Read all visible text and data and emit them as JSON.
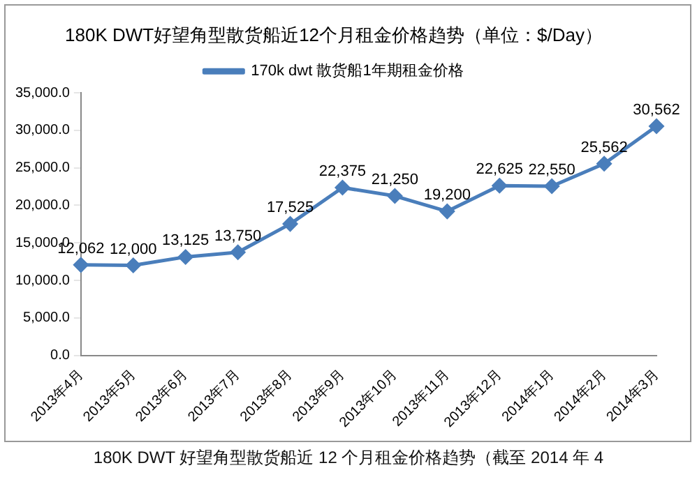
{
  "chart_data": {
    "type": "line",
    "title": "180K DWT好望角型散货船近12个月租金价格趋势（单位：$/Day）",
    "categories": [
      "2013年4月",
      "2013年5月",
      "2013年6月",
      "2013年7月",
      "2013年8月",
      "2013年9月",
      "2013年10月",
      "2013年11月",
      "2013年12月",
      "2014年1月",
      "2014年2月",
      "2014年3月"
    ],
    "series": [
      {
        "name": "170k dwt 散货船1年期租金价格",
        "color": "#4a7ebb",
        "values": [
          12062,
          12000,
          13125,
          13750,
          17525,
          22375,
          21250,
          19200,
          22625,
          22550,
          25562,
          30562
        ]
      }
    ],
    "value_labels": [
      "12,062",
      "12,000",
      "13,125",
      "13,750",
      "17,525",
      "22,375",
      "21,250",
      "19,200",
      "22,625",
      "22,550",
      "25,562",
      "30,562"
    ],
    "ylim": [
      0,
      35000
    ],
    "yticks": [
      {
        "value": 0,
        "label": "0.0"
      },
      {
        "value": 5000,
        "label": "5,000.0"
      },
      {
        "value": 10000,
        "label": "10,000.0"
      },
      {
        "value": 15000,
        "label": "15,000.0"
      },
      {
        "value": 20000,
        "label": "20,000.0"
      },
      {
        "value": 25000,
        "label": "25,000.0"
      },
      {
        "value": 30000,
        "label": "30,000.0"
      },
      {
        "value": 35000,
        "label": "35,000.0"
      }
    ],
    "grid": false,
    "legend": "top",
    "marker": "diamond",
    "line_style": "solid",
    "annotations": [
      "180K DWT 好望角型散货船近 12 个月租金价格趋势（截至 2014 年 4"
    ]
  }
}
